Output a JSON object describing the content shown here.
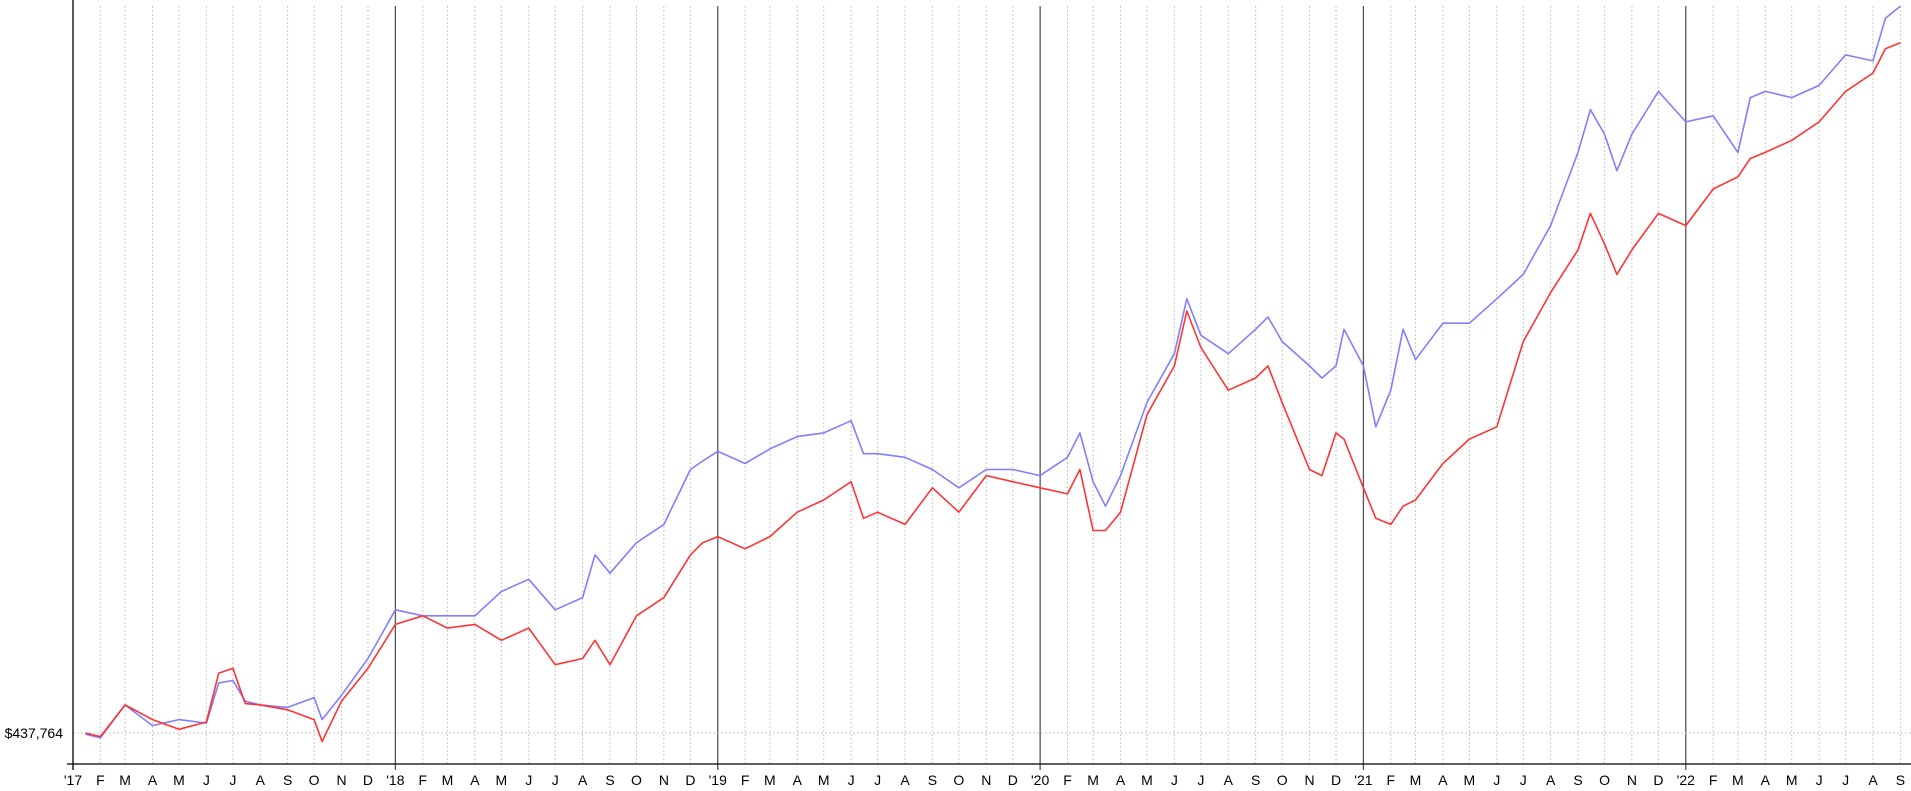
{
  "chart_data": {
    "type": "line",
    "title": "",
    "xlabel": "",
    "ylabel": "",
    "x_range": [
      "2017-01-01",
      "2022-09-01"
    ],
    "ylim": [
      360000,
      1100000
    ],
    "grid": {
      "vertical_monthly": true,
      "horizontal_at_reference": true
    },
    "y_reference": {
      "value": 437764,
      "label": "$437,764"
    },
    "xtick_labels": [
      "'17",
      "F",
      "M",
      "A",
      "M",
      "J",
      "J",
      "A",
      "S",
      "O",
      "N",
      "D",
      "'18",
      "F",
      "M",
      "A",
      "M",
      "J",
      "J",
      "A",
      "S",
      "O",
      "N",
      "D",
      "'19",
      "F",
      "M",
      "A",
      "M",
      "J",
      "J",
      "A",
      "S",
      "O",
      "N",
      "D",
      "'20",
      "F",
      "M",
      "A",
      "M",
      "J",
      "J",
      "A",
      "S",
      "O",
      "N",
      "D",
      "'21",
      "F",
      "M",
      "A",
      "M",
      "J",
      "J",
      "A",
      "S",
      "O",
      "N",
      "D",
      "'22",
      "F",
      "M",
      "A",
      "M",
      "J",
      "J",
      "A",
      "S"
    ],
    "x": [
      "2017-01-15",
      "2017-02-01",
      "2017-03-01",
      "2017-04-01",
      "2017-05-01",
      "2017-06-01",
      "2017-06-15",
      "2017-07-01",
      "2017-07-15",
      "2017-08-01",
      "2017-09-01",
      "2017-10-01",
      "2017-10-10",
      "2017-11-01",
      "2017-12-01",
      "2018-01-01",
      "2018-02-01",
      "2018-03-01",
      "2018-04-01",
      "2018-05-01",
      "2018-06-01",
      "2018-07-01",
      "2018-08-01",
      "2018-08-15",
      "2018-09-01",
      "2018-10-01",
      "2018-11-01",
      "2018-12-01",
      "2018-12-15",
      "2019-01-01",
      "2019-02-01",
      "2019-03-01",
      "2019-04-01",
      "2019-05-01",
      "2019-06-01",
      "2019-06-15",
      "2019-07-01",
      "2019-08-01",
      "2019-09-01",
      "2019-10-01",
      "2019-11-01",
      "2019-12-01",
      "2020-01-01",
      "2020-02-01",
      "2020-02-15",
      "2020-03-01",
      "2020-03-15",
      "2020-04-01",
      "2020-05-01",
      "2020-06-01",
      "2020-06-15",
      "2020-07-01",
      "2020-08-01",
      "2020-09-01",
      "2020-09-15",
      "2020-10-01",
      "2020-11-01",
      "2020-11-15",
      "2020-12-01",
      "2020-12-10",
      "2021-01-01",
      "2021-01-15",
      "2021-02-01",
      "2021-02-15",
      "2021-03-01",
      "2021-04-01",
      "2021-05-01",
      "2021-06-01",
      "2021-07-01",
      "2021-08-01",
      "2021-09-01",
      "2021-09-15",
      "2021-10-01",
      "2021-10-15",
      "2021-11-01",
      "2021-12-01",
      "2022-01-01",
      "2022-02-01",
      "2022-03-01",
      "2022-03-15",
      "2022-04-01",
      "2022-05-01",
      "2022-06-01",
      "2022-07-01",
      "2022-08-01",
      "2022-08-15",
      "2022-09-01"
    ],
    "series": [
      {
        "color": "#7f7fff",
        "values": [
          436700,
          433400,
          463400,
          444500,
          450000,
          446700,
          483400,
          485600,
          466700,
          463400,
          461100,
          470000,
          450000,
          472200,
          505600,
          550000,
          544500,
          544500,
          544500,
          566700,
          577800,
          550000,
          561100,
          600000,
          583300,
          611100,
          627800,
          677800,
          685500,
          694400,
          683300,
          696600,
          707800,
          711100,
          722200,
          692200,
          692200,
          688900,
          677800,
          661100,
          677800,
          677800,
          672200,
          688900,
          711100,
          666700,
          644400,
          672200,
          738900,
          783300,
          833300,
          800000,
          783300,
          805500,
          816600,
          794400,
          772200,
          761100,
          772200,
          805500,
          772200,
          716700,
          750000,
          805500,
          777800,
          811100,
          811100,
          833300,
          855500,
          900000,
          966600,
          1005500,
          983300,
          950000,
          983300,
          1022200,
          994400,
          1000000,
          966600,
          1016600,
          1022200,
          1016600,
          1027700,
          1055500,
          1050000,
          1088800,
          1099900
        ]
      },
      {
        "color": "#ff3333",
        "values": [
          437800,
          434500,
          463400,
          450000,
          441100,
          447800,
          492200,
          496700,
          464500,
          463400,
          458900,
          450000,
          430000,
          466700,
          496700,
          536700,
          544500,
          533300,
          536700,
          522200,
          533300,
          500000,
          505600,
          522200,
          500000,
          544500,
          561100,
          600000,
          611100,
          616700,
          605600,
          616700,
          638900,
          650000,
          666700,
          633300,
          638900,
          627800,
          661100,
          638900,
          672200,
          666700,
          661100,
          655600,
          677800,
          622200,
          622200,
          638900,
          727800,
          772200,
          822200,
          788900,
          750000,
          761100,
          772200,
          738900,
          677800,
          672200,
          711100,
          705500,
          661100,
          633300,
          627800,
          644400,
          650000,
          683300,
          705500,
          716700,
          794400,
          838900,
          877800,
          911100,
          883300,
          855500,
          877800,
          911100,
          900000,
          933300,
          944400,
          961100,
          966600,
          977700,
          994400,
          1022200,
          1039000,
          1061000,
          1066600
        ]
      }
    ]
  }
}
